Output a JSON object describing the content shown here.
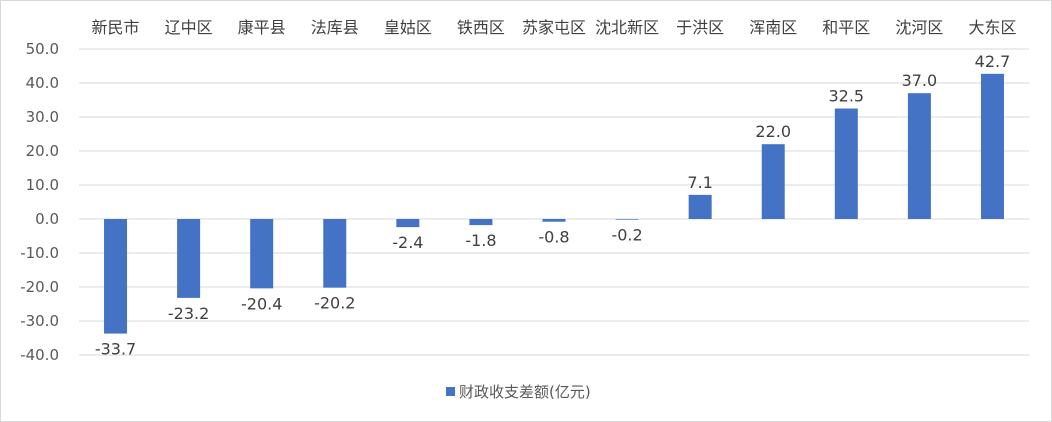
{
  "chart_data": {
    "type": "bar",
    "categories": [
      "新民市",
      "辽中区",
      "康平县",
      "法库县",
      "皇姑区",
      "铁西区",
      "苏家屯区",
      "沈北新区",
      "于洪区",
      "浑南区",
      "和平区",
      "沈河区",
      "大东区"
    ],
    "series": [
      {
        "name": "财政收支差额(亿元)",
        "values": [
          -33.7,
          -23.2,
          -20.4,
          -20.2,
          -2.4,
          -1.8,
          -0.8,
          -0.2,
          7.1,
          22.0,
          32.5,
          37.0,
          42.7
        ],
        "color": "#4472c4"
      }
    ],
    "ylim": [
      -40,
      50
    ],
    "yticks": [
      50,
      40,
      30,
      20,
      10,
      0,
      -10,
      -20,
      -30,
      -40
    ],
    "ytick_labels": [
      "50.0",
      "40.0",
      "30.0",
      "20.0",
      "10.0",
      "0.0",
      "-10.0",
      "-20.0",
      "-30.0",
      "-40.0"
    ],
    "xaxis_position": "top",
    "grid": true,
    "legend_position": "bottom",
    "title": "",
    "xlabel": "",
    "ylabel": ""
  }
}
